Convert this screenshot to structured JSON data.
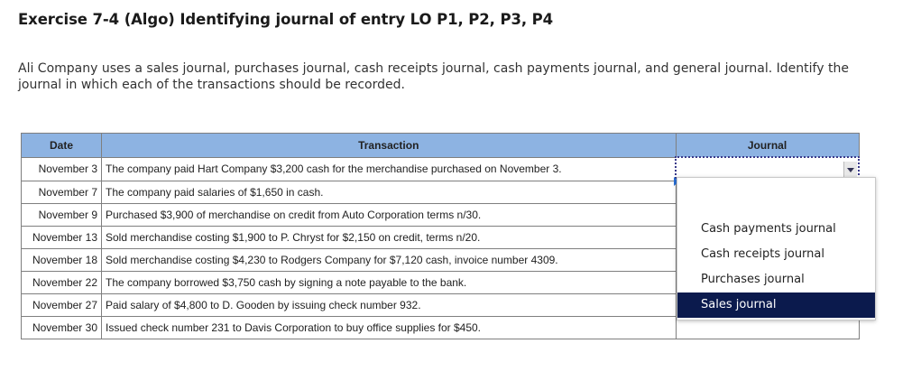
{
  "header": {
    "title": "Exercise 7-4 (Algo) Identifying journal of entry LO P1, P2, P3, P4",
    "intro": "Ali Company uses a sales journal, purchases journal, cash receipts journal, cash payments journal, and general journal. Identify the journal in which each of the transactions should be recorded."
  },
  "table": {
    "headers": {
      "date": "Date",
      "transaction": "Transaction",
      "journal": "Journal"
    },
    "rows": [
      {
        "date": "November 3",
        "transaction": "The company paid Hart Company $3,200 cash for the merchandise purchased on November 3."
      },
      {
        "date": "November 7",
        "transaction": "The company paid salaries of $1,650 in cash."
      },
      {
        "date": "November 9",
        "transaction": "Purchased $3,900 of merchandise on credit from Auto Corporation terms n/30."
      },
      {
        "date": "November 13",
        "transaction": "Sold merchandise costing $1,900 to P. Chryst for $2,150 on credit, terms n/20."
      },
      {
        "date": "November 18",
        "transaction": "Sold merchandise costing $4,230 to Rodgers Company for $7,120 cash, invoice number 4309."
      },
      {
        "date": "November 22",
        "transaction": "The company borrowed $3,750 cash by signing a note payable to the bank."
      },
      {
        "date": "November 27",
        "transaction": "Paid salary of $4,800 to D. Gooden by issuing check number 932."
      },
      {
        "date": "November 30",
        "transaction": "Issued check number 231 to Davis Corporation to buy office supplies for $450."
      }
    ]
  },
  "dropdown": {
    "options": [
      "Cash payments journal",
      "Cash receipts journal",
      "Purchases journal",
      "Sales journal"
    ],
    "selected": "Sales journal"
  }
}
